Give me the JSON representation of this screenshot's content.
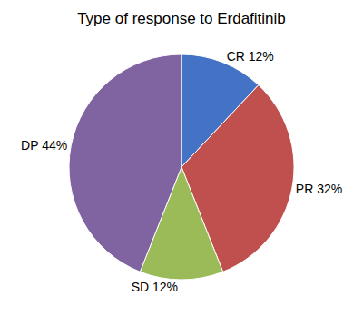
{
  "chart_data": {
    "type": "pie",
    "title": "Type of response to Erdafitinib",
    "values": [
      12,
      32,
      12,
      44
    ],
    "value_labels": [
      "CR 12%",
      "PR 32%",
      "SD 12%",
      "DP 44%"
    ],
    "colors": [
      "#4472C4",
      "#C0504D",
      "#9BBB59",
      "#8064A2"
    ],
    "data_labels": true
  }
}
